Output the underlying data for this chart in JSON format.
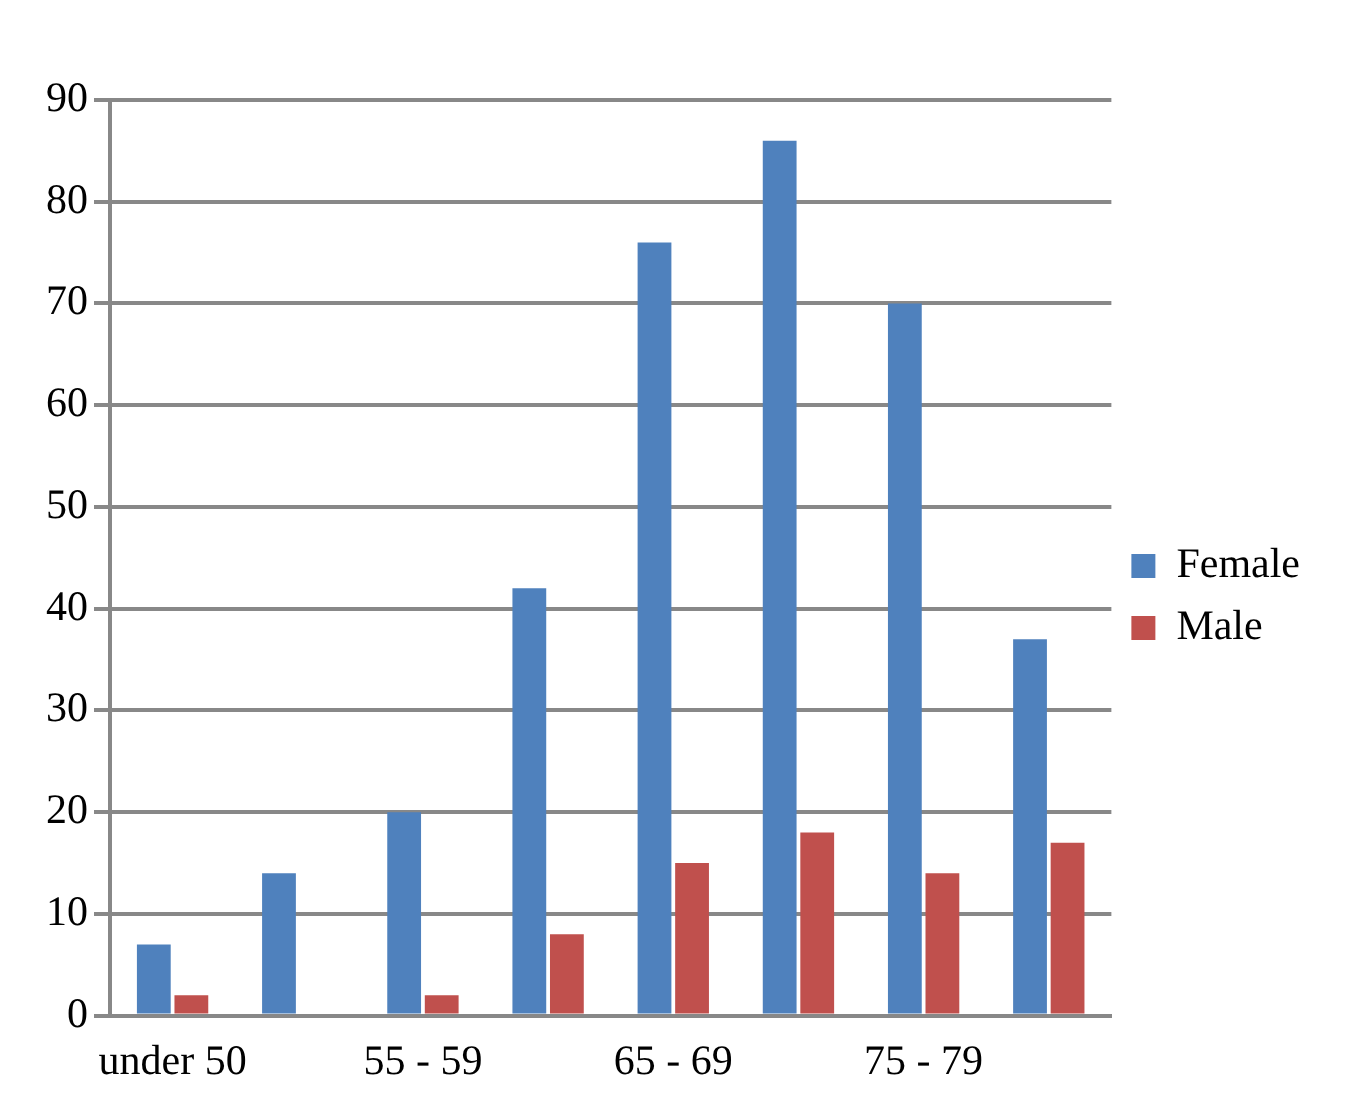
{
  "chart_data": {
    "type": "bar",
    "categories": [
      "under 50",
      null,
      "55 - 59",
      null,
      "65 - 69",
      null,
      "75 - 79",
      null
    ],
    "series": [
      {
        "name": "Female",
        "color": "#4f81bd",
        "values": [
          7,
          14,
          20,
          42,
          76,
          86,
          70,
          37
        ]
      },
      {
        "name": "Male",
        "color": "#c0504d",
        "values": [
          2,
          null,
          2,
          8,
          15,
          18,
          14,
          17
        ]
      }
    ],
    "ylim": [
      0,
      90
    ],
    "yticks": [
      0,
      10,
      20,
      30,
      40,
      50,
      60,
      70,
      80,
      90
    ],
    "grid": "y",
    "legend": "right"
  }
}
